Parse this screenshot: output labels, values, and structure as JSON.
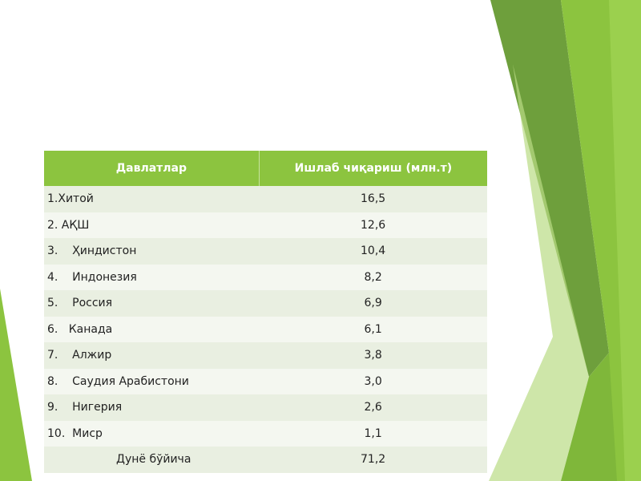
{
  "table": {
    "header": [
      "Давлатлар",
      "Ишлаб чиқариш (млн.т)"
    ],
    "rows": [
      [
        "1.Хитой",
        "16,5"
      ],
      [
        "2. АҚШ",
        "12,6"
      ],
      [
        "3.    Ҳиндистон",
        "10,4"
      ],
      [
        "4.    Индонезия",
        "8,2"
      ],
      [
        "5.    Россия",
        "6,9"
      ],
      [
        "6.   Канада",
        "6,1"
      ],
      [
        "7.    Алжир",
        "3,8"
      ],
      [
        "8.    Саудия Арабистони",
        "3,0"
      ],
      [
        "9.    Нигерия",
        "2,6"
      ],
      [
        "10.  Миср",
        "1,1"
      ],
      [
        "Дунё бўйича",
        "71,2"
      ]
    ]
  }
}
